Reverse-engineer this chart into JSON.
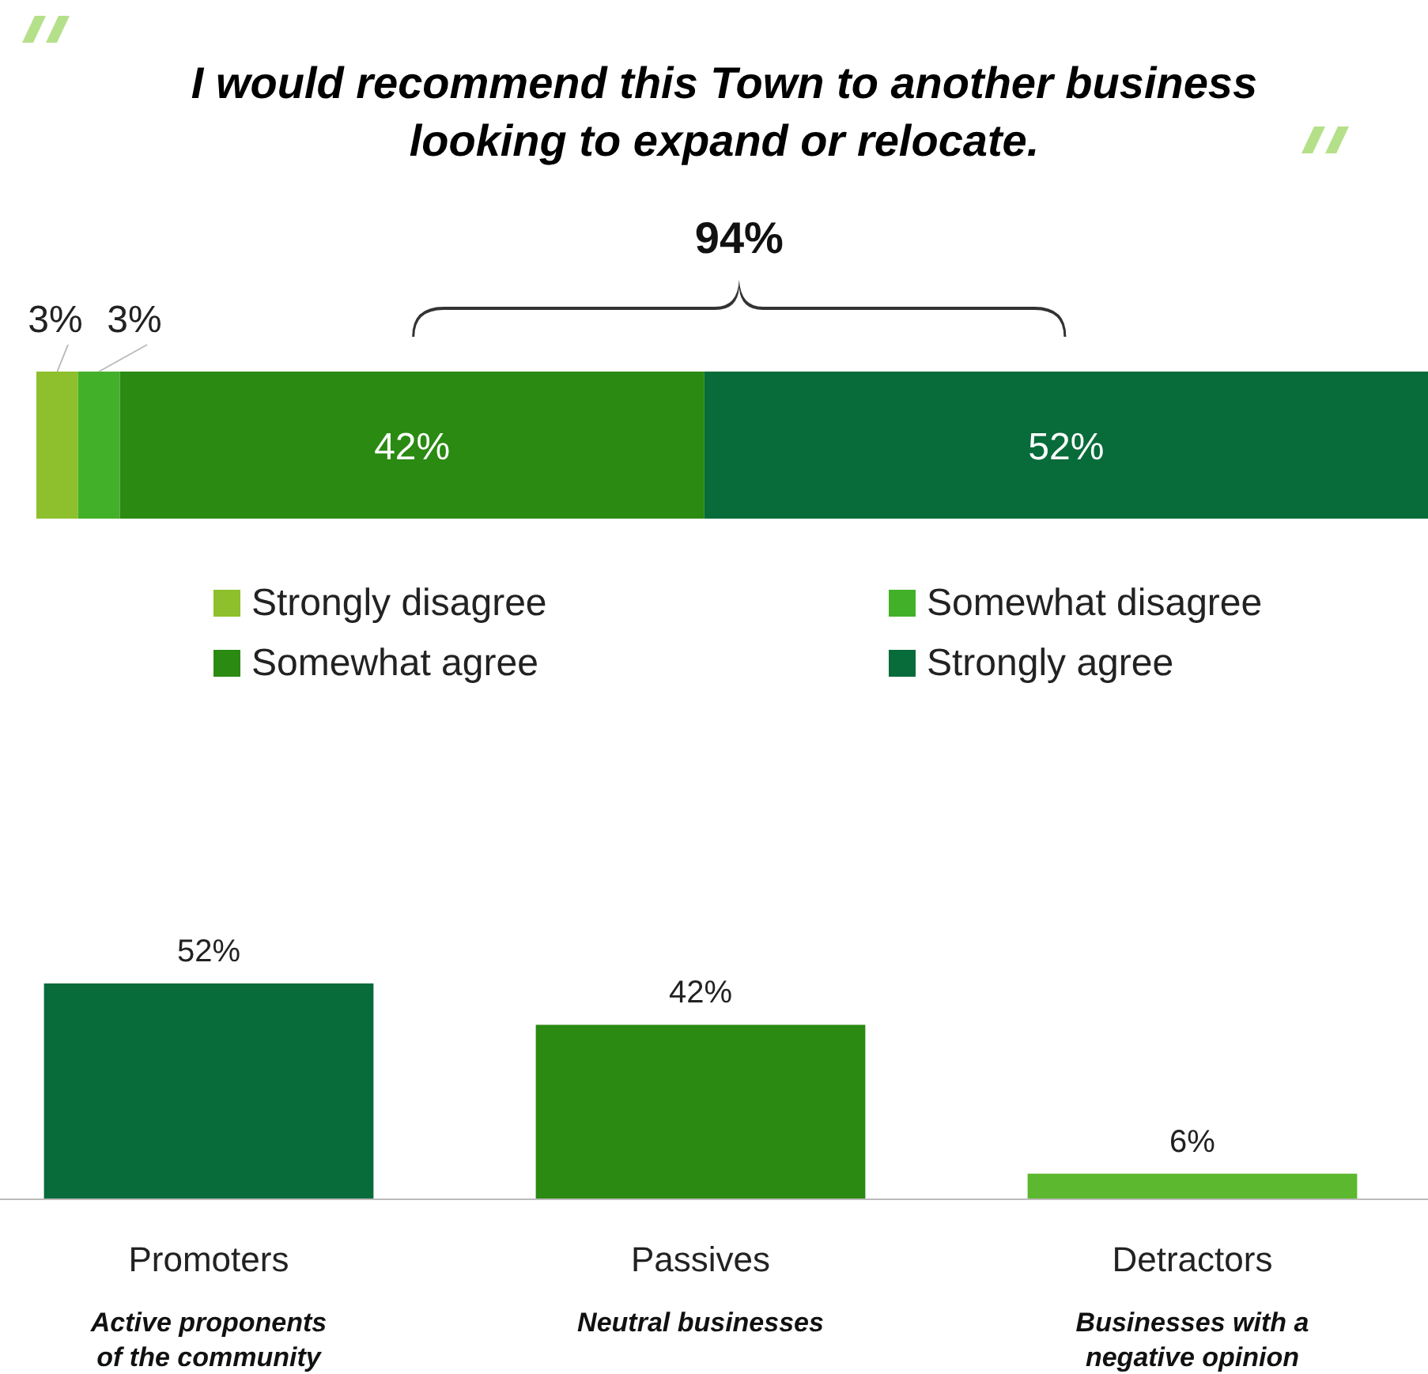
{
  "chart_data": [
    {
      "type": "bar",
      "title": "I would recommend this Town to another business looking to expand or relocate.",
      "orientation": "horizontal",
      "stacked": true,
      "categories": [
        null
      ],
      "legend": "bottom",
      "annotations": [
        "94%"
      ],
      "series": [
        {
          "name": "Strongly disagree",
          "color": "#8dc02c",
          "values": [
            3
          ],
          "value_labels": [
            "3%"
          ]
        },
        {
          "name": "Somewhat disagree",
          "color": "#43b02a",
          "values": [
            3
          ],
          "value_labels": [
            "3%"
          ]
        },
        {
          "name": "Somewhat agree",
          "color": "#2a8a12",
          "values": [
            42
          ],
          "value_labels": [
            "42%"
          ]
        },
        {
          "name": "Strongly agree",
          "color": "#076b3a",
          "values": [
            52
          ],
          "value_labels": [
            "52%"
          ]
        }
      ]
    },
    {
      "type": "bar",
      "categories": [
        "Promoters",
        "Passives",
        "Detractors"
      ],
      "values": [
        52,
        42,
        6
      ],
      "value_labels": [
        "52%",
        "42%",
        "6%"
      ],
      "colors": [
        "#076b3a",
        "#2a8a12",
        "#5cb82e"
      ],
      "annotations": [
        "Active proponents of the community",
        "Neutral businesses",
        "Businesses with a negative opinion"
      ]
    }
  ]
}
